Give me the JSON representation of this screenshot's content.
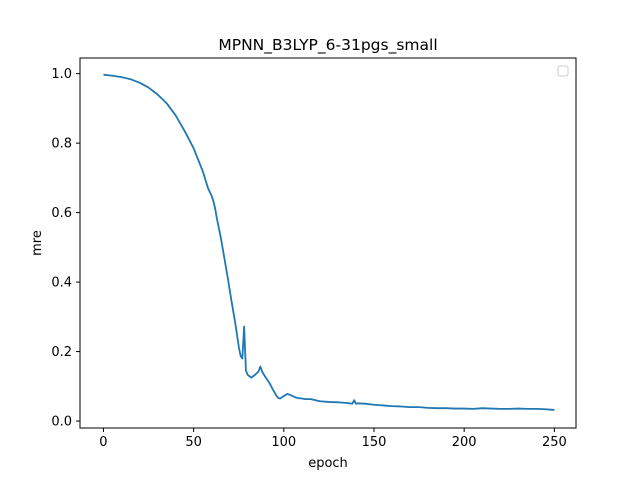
{
  "chart_data": {
    "type": "line",
    "title": "MPNN_B3LYP_6-31pgs_small",
    "xlabel": "epoch",
    "ylabel": "mre",
    "xlim": [
      -13,
      262
    ],
    "ylim": [
      -0.02,
      1.045
    ],
    "xticks": [
      0,
      50,
      100,
      150,
      200,
      250
    ],
    "yticks": [
      0.0,
      0.2,
      0.4,
      0.6,
      0.8,
      1.0
    ],
    "xtick_labels": [
      "0",
      "50",
      "100",
      "150",
      "200",
      "250"
    ],
    "ytick_labels": [
      "0.0",
      "0.2",
      "0.4",
      "0.6",
      "0.8",
      "1.0"
    ],
    "grid": false,
    "legend": {
      "placement": "top-right",
      "entries": []
    },
    "series": [
      {
        "color": "#1f77b4",
        "x": [
          0,
          5,
          10,
          15,
          20,
          25,
          30,
          35,
          40,
          45,
          50,
          55,
          58,
          60,
          61,
          62,
          63,
          65,
          67,
          69,
          71,
          73,
          75,
          76,
          77,
          78,
          79,
          80,
          82,
          84,
          86,
          87,
          88,
          90,
          92,
          94,
          96,
          97,
          98,
          100,
          102,
          104,
          106,
          108,
          110,
          112,
          115,
          120,
          125,
          130,
          135,
          138,
          139,
          140,
          141,
          145,
          150,
          155,
          160,
          165,
          170,
          175,
          180,
          185,
          190,
          195,
          200,
          205,
          210,
          215,
          220,
          225,
          230,
          235,
          240,
          245,
          250
        ],
        "y": [
          0.997,
          0.994,
          0.99,
          0.984,
          0.974,
          0.96,
          0.94,
          0.915,
          0.88,
          0.835,
          0.785,
          0.72,
          0.67,
          0.648,
          0.632,
          0.61,
          0.58,
          0.53,
          0.47,
          0.41,
          0.345,
          0.285,
          0.215,
          0.188,
          0.18,
          0.272,
          0.145,
          0.133,
          0.125,
          0.133,
          0.143,
          0.157,
          0.142,
          0.125,
          0.11,
          0.09,
          0.072,
          0.066,
          0.065,
          0.072,
          0.078,
          0.074,
          0.069,
          0.066,
          0.065,
          0.063,
          0.063,
          0.057,
          0.055,
          0.054,
          0.052,
          0.05,
          0.06,
          0.05,
          0.051,
          0.05,
          0.047,
          0.045,
          0.043,
          0.042,
          0.04,
          0.04,
          0.038,
          0.037,
          0.037,
          0.036,
          0.036,
          0.035,
          0.037,
          0.036,
          0.035,
          0.035,
          0.036,
          0.035,
          0.035,
          0.034,
          0.032
        ]
      }
    ]
  }
}
